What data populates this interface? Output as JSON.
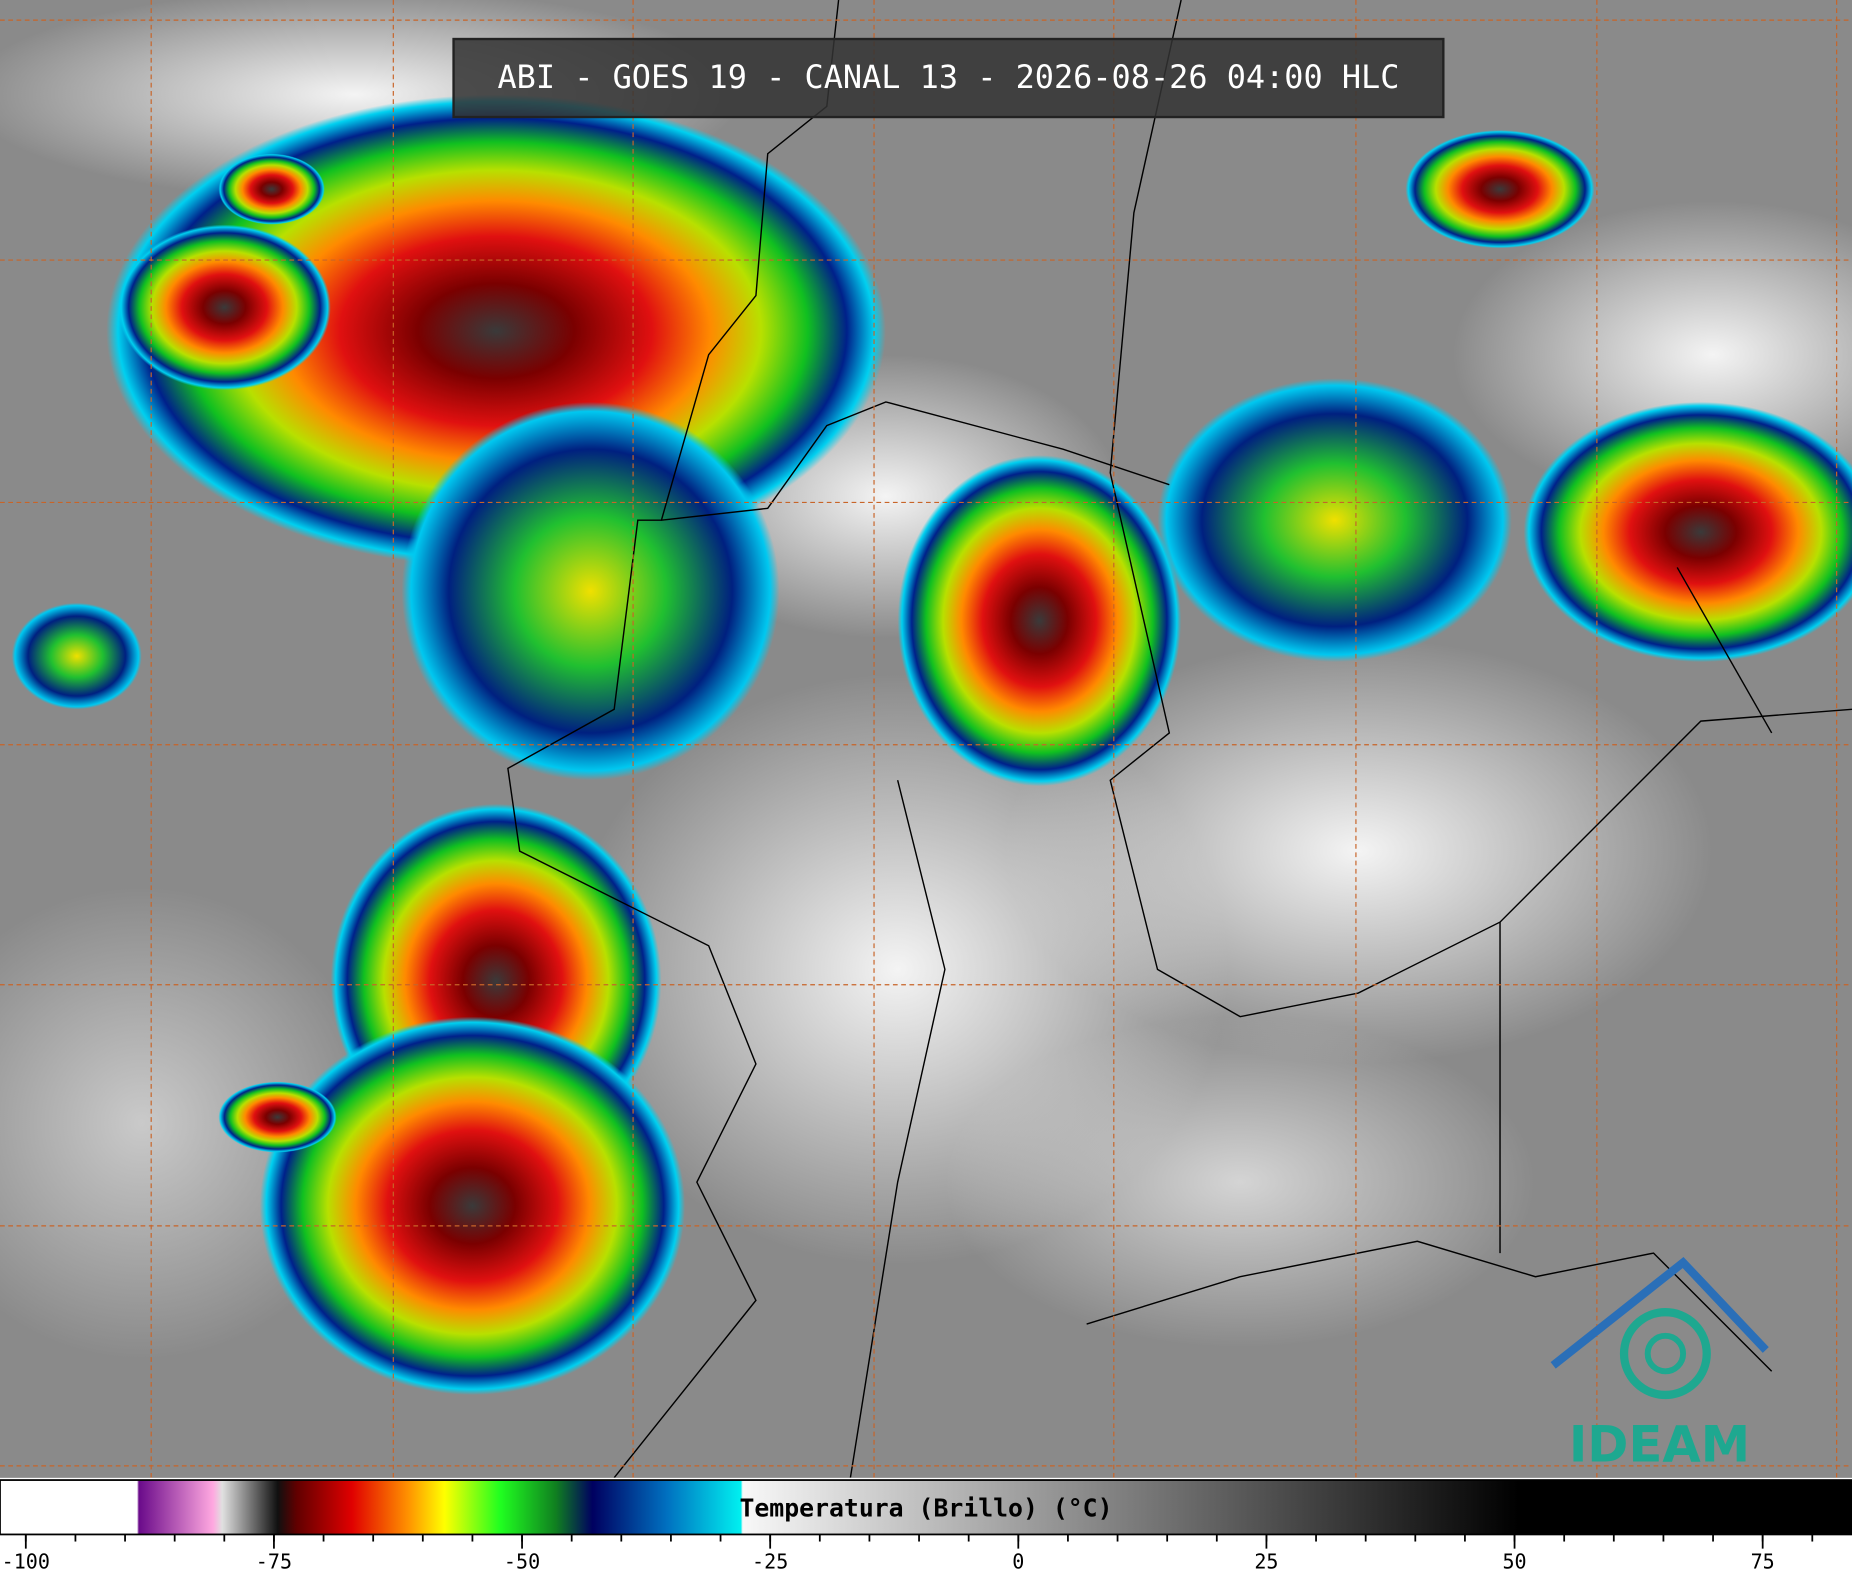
{
  "title": "ABI - GOES 19 - CANAL 13 - 2026-08-26 04:00 HLC",
  "colorbar": {
    "label": "Temperatura (Brillo) (°C)",
    "xlim": [
      -102.6,
      84
    ],
    "ticks": [
      -100,
      -75,
      -50,
      -25,
      0,
      25,
      50,
      75
    ],
    "minor_step": 5
  },
  "logo": "IDEAM"
}
